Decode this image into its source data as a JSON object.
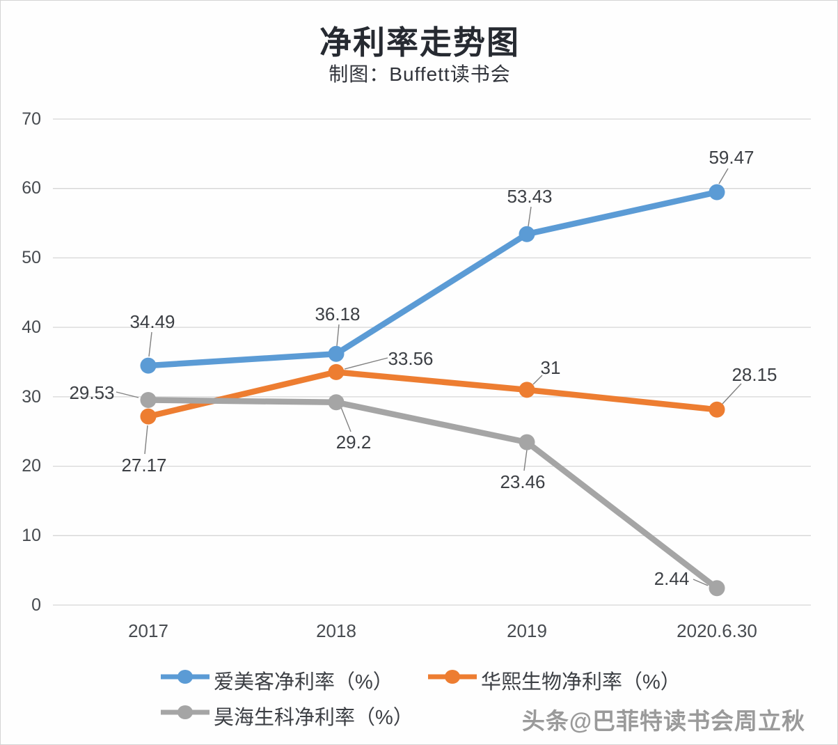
{
  "title": "净利率走势图",
  "subtitle": "制图：Buffett读书会",
  "watermark": "头条@巴菲特读书会周立秋",
  "colors": {
    "series_blue": "#5B9BD5",
    "series_orange": "#ED7D31",
    "series_gray": "#A5A5A5",
    "gridline": "#D6D6D6",
    "leader_line": "#808080",
    "label_text": "#3C3F44",
    "axis_text": "#474B50"
  },
  "chart_data": {
    "type": "line",
    "title": "净利率走势图",
    "subtitle": "制图：Buffett读书会",
    "categories": [
      "2017",
      "2018",
      "2019",
      "2020.6.30"
    ],
    "series": [
      {
        "name": "爱美客净利率（%）",
        "color": "#5B9BD5",
        "values": [
          34.49,
          36.18,
          53.43,
          59.47
        ],
        "labels": [
          "34.49",
          "36.18",
          "53.43",
          "59.47"
        ]
      },
      {
        "name": "华熙生物净利率（%）",
        "color": "#ED7D31",
        "values": [
          27.17,
          33.56,
          31,
          28.15
        ],
        "labels": [
          "27.17",
          "33.56",
          "31",
          "28.15"
        ]
      },
      {
        "name": "昊海生科净利率（%）",
        "color": "#A5A5A5",
        "values": [
          29.53,
          29.2,
          23.46,
          2.44
        ],
        "labels": [
          "29.53",
          "29.2",
          "23.46",
          "2.44"
        ]
      }
    ],
    "xlabel": "",
    "ylabel": "",
    "ylim": [
      0,
      70
    ],
    "yticks": [
      0,
      10,
      20,
      30,
      40,
      50,
      60,
      70
    ],
    "grid": true,
    "legend_position": "bottom",
    "data_labels": true
  }
}
